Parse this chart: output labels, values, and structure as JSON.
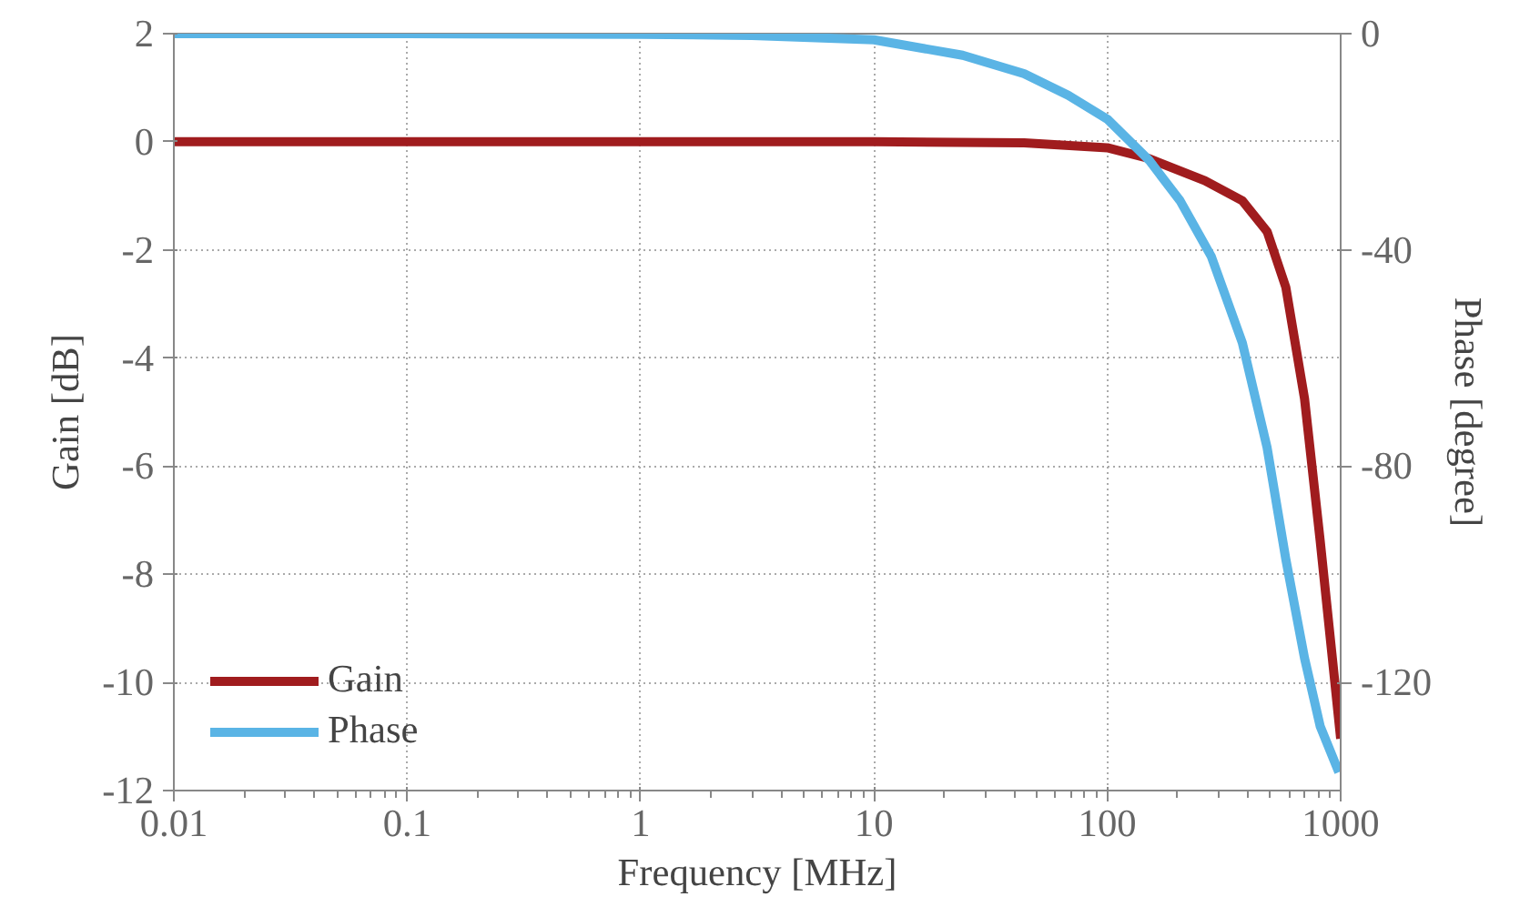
{
  "chart_data": {
    "type": "line",
    "xlabel": "Frequency [MHz]",
    "ylabel": "Gain [dB]",
    "y2label": "Phase [degree]",
    "log": "x",
    "xlim": [
      0.01,
      1000
    ],
    "xticks": [
      0.01,
      0.1,
      1,
      10,
      100,
      1000
    ],
    "ylim": [
      -12,
      2
    ],
    "yticks": [
      -12,
      -10,
      -8,
      -6,
      -4,
      -2,
      0,
      2
    ],
    "y2lim": [
      -140,
      0
    ],
    "y2ticks": [
      -120,
      -80,
      -40,
      0
    ],
    "grid": true,
    "legend": "bottom left",
    "line_style": "solid",
    "series": [
      {
        "name": "Gain",
        "color": "#a01c1e",
        "x": [
          0.01,
          1,
          10,
          44,
          100,
          151,
          262,
          379,
          484,
          582,
          700,
          817,
          1000
        ],
        "values": [
          0,
          0,
          0,
          -0.02,
          -0.11,
          -0.31,
          -0.72,
          -1.09,
          -1.66,
          -2.69,
          -4.75,
          -7.38,
          -11.04
        ]
      },
      {
        "name": "Phase",
        "color": "#5ab4e5",
        "axis": "y2",
        "x": [
          0.01,
          0.1,
          1,
          3,
          10,
          24,
          44,
          68,
          100,
          151,
          205,
          279,
          379,
          484,
          582,
          700,
          817,
          982
        ],
        "values": [
          0,
          -0.01,
          -0.11,
          -0.34,
          -1.14,
          -4.0,
          -7.4,
          -11.4,
          -15.8,
          -23.4,
          -30.9,
          -41.2,
          -57.2,
          -76.6,
          -97.2,
          -115.5,
          -128.1,
          -136.6
        ]
      }
    ]
  }
}
